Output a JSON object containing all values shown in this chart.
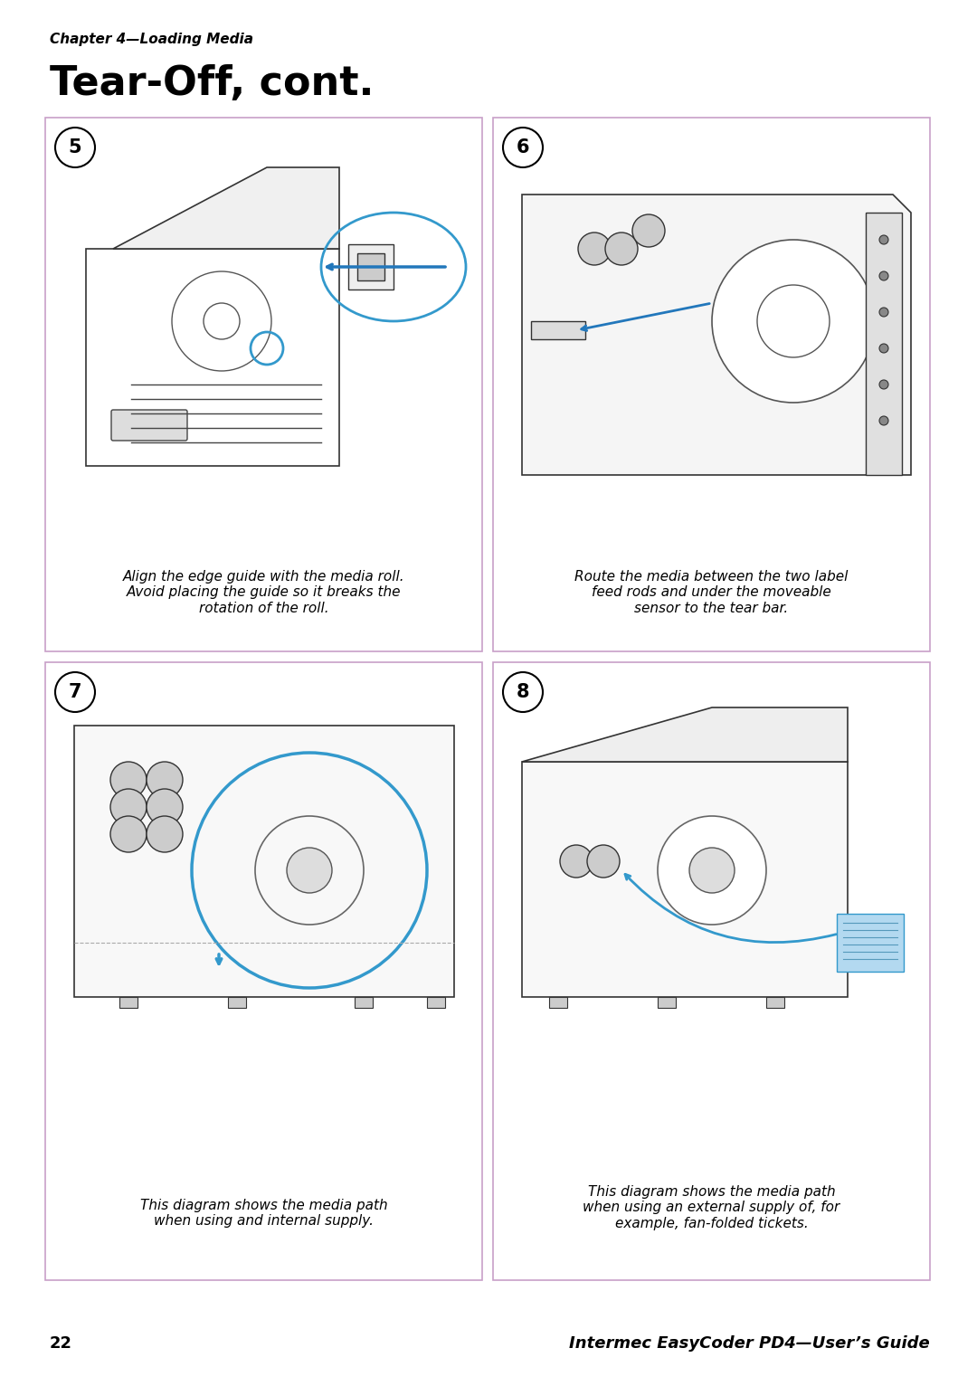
{
  "bg_color": "#ffffff",
  "page_number": "22",
  "footer_text": "Intermec EasyCoder PD4—User’s Guide",
  "chapter_label": "Chapter 4—Loading Media",
  "title": "Tear-Off, cont.",
  "title_fontsize": 32,
  "chapter_fontsize": 11,
  "grid_border_color": "#c8a0c8",
  "step_numbers": [
    "5",
    "6",
    "7",
    "8"
  ],
  "step5_caption": "Align the edge guide with the media roll.\nAvoid placing the guide so it breaks the\nrotation of the roll.",
  "step6_caption": "Route the media between the two label\nfeed rods and under the moveable\nsensor to the tear bar.",
  "step7_caption": "This diagram shows the media path\nwhen using and internal supply.",
  "step8_caption": "This diagram shows the media path\nwhen using an external supply of, for\nexample, fan-folded tickets.",
  "blue_color": "#3399cc",
  "arrow_color": "#2277bb",
  "text_color": "#000000",
  "caption_fontsize": 11
}
